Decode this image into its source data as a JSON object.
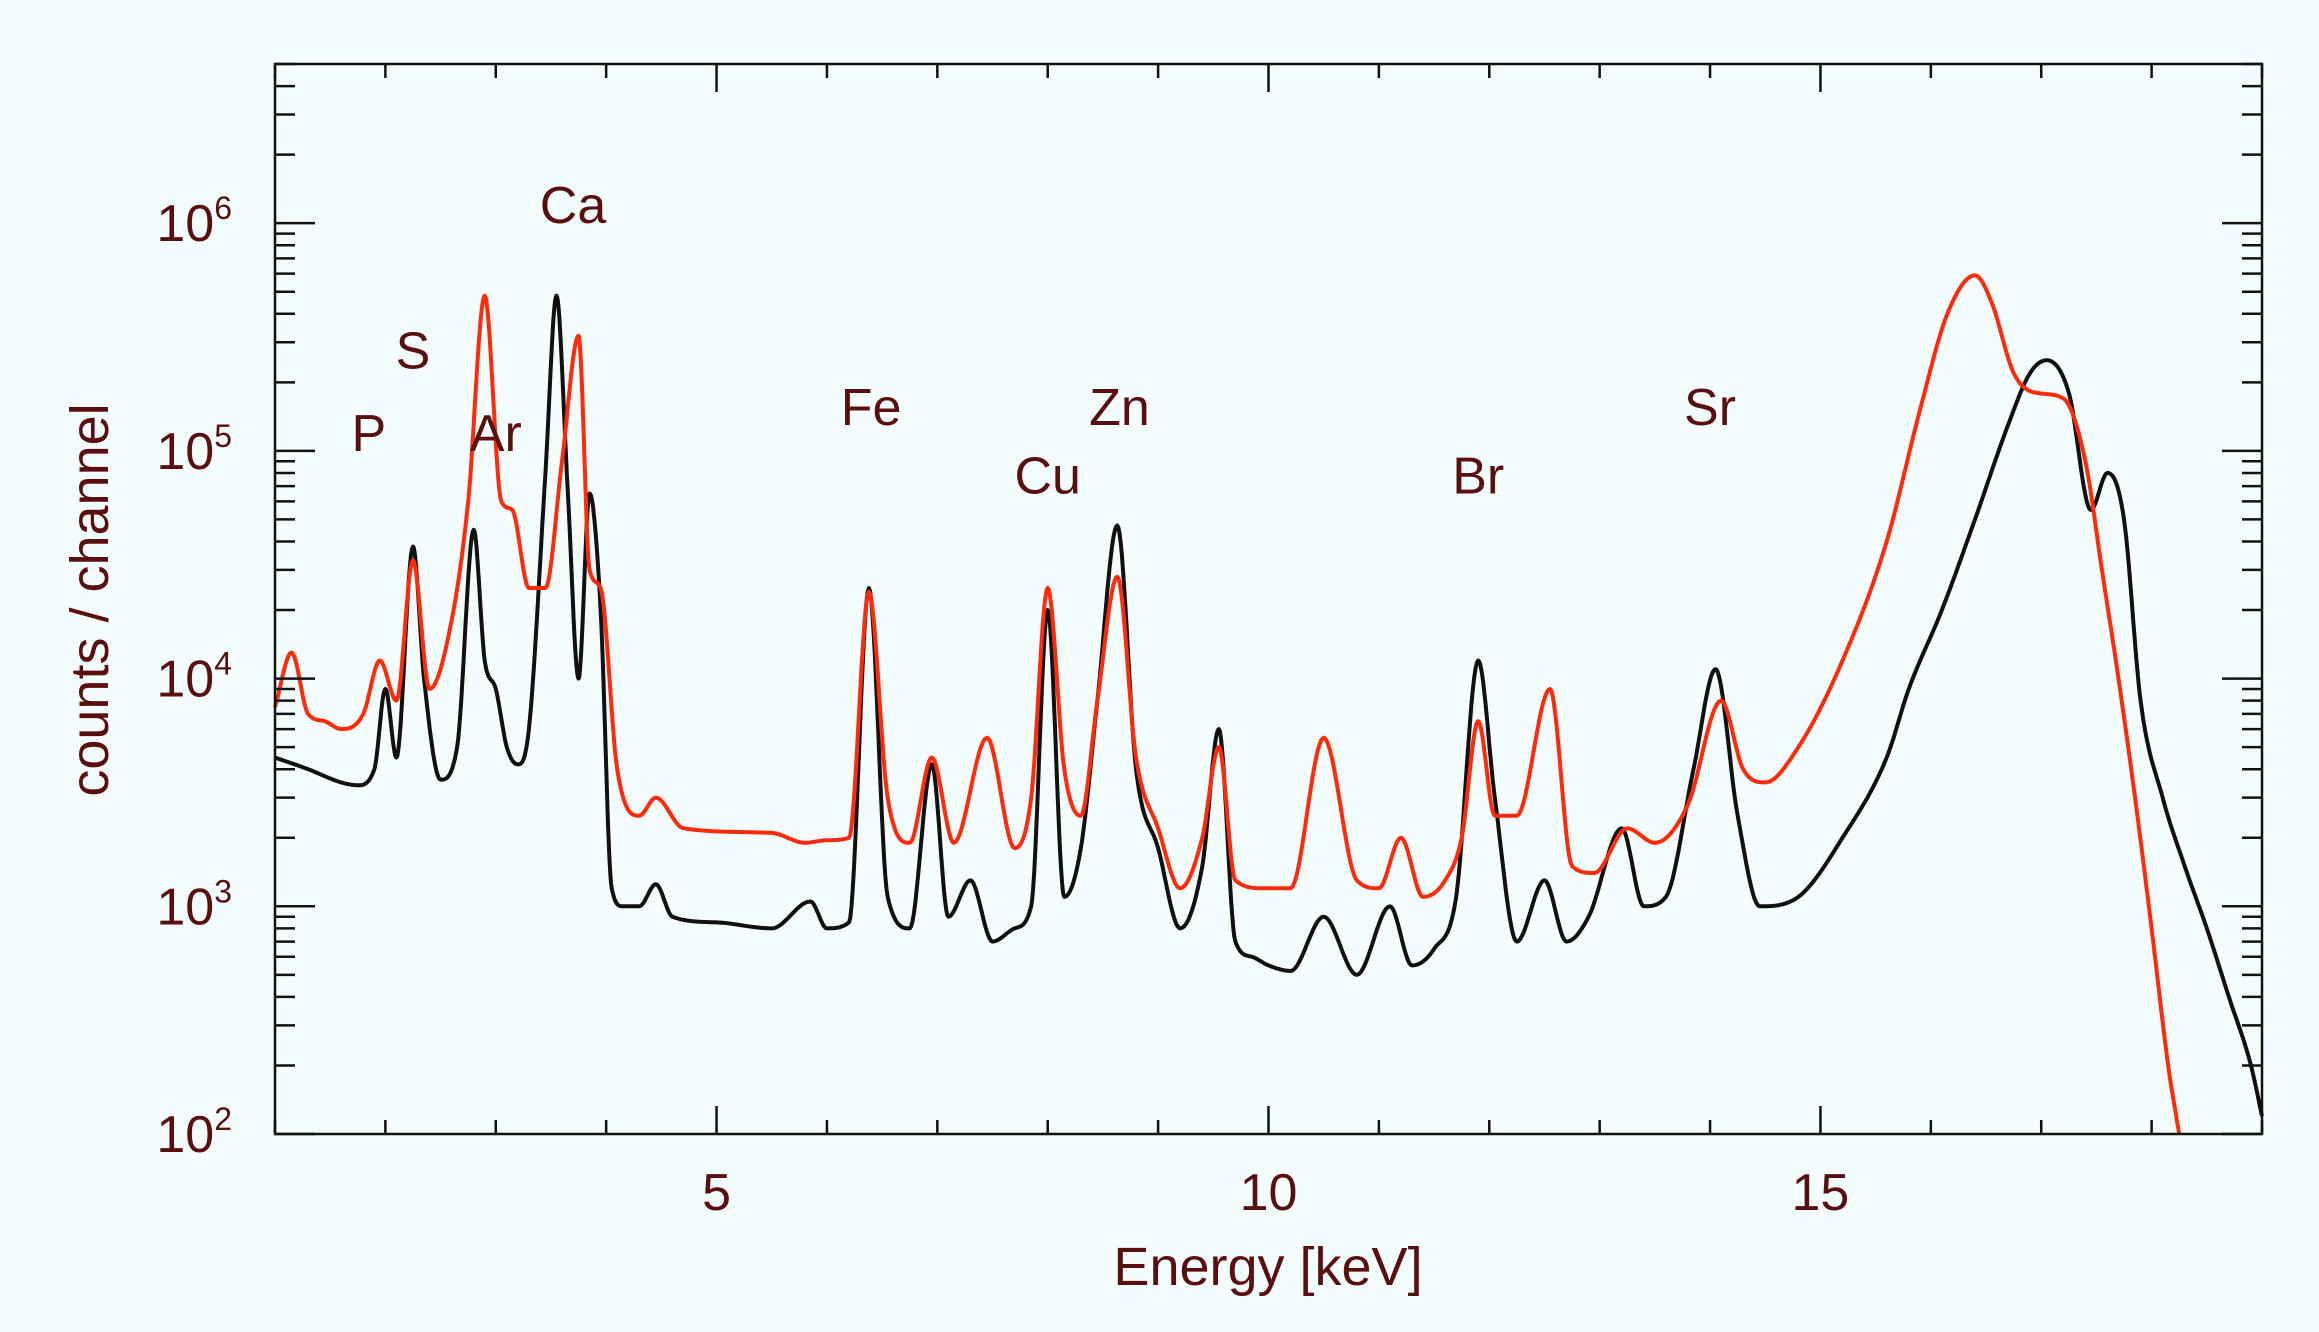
{
  "chart_data": {
    "type": "line",
    "xlabel": "Energy [keV]",
    "ylabel": "counts / channel",
    "xlim": [
      1.0,
      19.0
    ],
    "ylim": [
      100,
      5000000
    ],
    "yscale": "log",
    "grid": false,
    "x_ticks": [
      5,
      10,
      15
    ],
    "y_ticks": [
      {
        "base": "10",
        "exp": "2",
        "value": 100
      },
      {
        "base": "10",
        "exp": "3",
        "value": 1000
      },
      {
        "base": "10",
        "exp": "4",
        "value": 10000
      },
      {
        "base": "10",
        "exp": "5",
        "value": 100000
      },
      {
        "base": "10",
        "exp": "6",
        "value": 1000000
      }
    ],
    "annotations": [
      {
        "text": "P",
        "x": 1.85,
        "y": 100000
      },
      {
        "text": "S",
        "x": 2.25,
        "y": 230000
      },
      {
        "text": "Ar",
        "x": 3.0,
        "y": 100000
      },
      {
        "text": "Ca",
        "x": 3.7,
        "y": 1000000
      },
      {
        "text": "Fe",
        "x": 6.4,
        "y": 130000
      },
      {
        "text": "Cu",
        "x": 8.0,
        "y": 65000
      },
      {
        "text": "Zn",
        "x": 8.65,
        "y": 130000
      },
      {
        "text": "Br",
        "x": 11.9,
        "y": 65000
      },
      {
        "text": "Sr",
        "x": 14.0,
        "y": 130000
      }
    ],
    "series": [
      {
        "color": "#111111",
        "x": [
          1.0,
          1.3,
          1.6,
          1.75,
          1.9,
          2.0,
          2.1,
          2.25,
          2.35,
          2.5,
          2.65,
          2.8,
          2.9,
          3.0,
          3.1,
          3.2,
          3.3,
          3.45,
          3.55,
          3.65,
          3.75,
          3.85,
          3.95,
          4.05,
          4.15,
          4.3,
          4.45,
          4.6,
          5.0,
          5.5,
          5.85,
          6.0,
          6.2,
          6.38,
          6.55,
          6.75,
          6.95,
          7.1,
          7.3,
          7.5,
          7.7,
          7.85,
          8.0,
          8.15,
          8.3,
          8.45,
          8.63,
          8.8,
          9.0,
          9.2,
          9.4,
          9.55,
          9.7,
          9.85,
          10.0,
          10.2,
          10.5,
          10.8,
          11.1,
          11.3,
          11.5,
          11.7,
          11.9,
          12.05,
          12.25,
          12.5,
          12.7,
          12.9,
          13.2,
          13.4,
          13.6,
          13.85,
          14.05,
          14.25,
          14.45,
          14.8,
          15.2,
          15.6,
          15.8,
          16.1,
          16.4,
          16.7,
          16.9,
          17.05,
          17.25,
          17.45,
          17.6,
          17.75,
          17.9,
          18.1,
          18.3,
          18.5,
          18.7,
          18.9,
          19.0
        ],
        "y": [
          4500,
          4000,
          3500,
          3400,
          4000,
          9000,
          4500,
          38000,
          10000,
          3600,
          5000,
          45000,
          12000,
          9000,
          5000,
          4200,
          6000,
          80000,
          480000,
          70000,
          10000,
          65000,
          20000,
          1200,
          1000,
          1000,
          1250,
          900,
          850,
          800,
          1050,
          800,
          850,
          25000,
          1100,
          800,
          4200,
          900,
          1300,
          700,
          800,
          1000,
          20000,
          1100,
          1800,
          8000,
          47000,
          4000,
          1800,
          800,
          1500,
          6000,
          700,
          600,
          550,
          520,
          900,
          500,
          1000,
          550,
          650,
          1100,
          12000,
          3000,
          700,
          1300,
          700,
          900,
          2200,
          1000,
          1100,
          4000,
          11000,
          2500,
          1000,
          1100,
          2000,
          4500,
          9000,
          20000,
          50000,
          130000,
          220000,
          250000,
          180000,
          55000,
          80000,
          50000,
          8000,
          3000,
          1500,
          800,
          400,
          200,
          120
        ]
      },
      {
        "color": "#ff2a0a",
        "x": [
          1.0,
          1.15,
          1.3,
          1.45,
          1.6,
          1.8,
          1.95,
          2.1,
          2.25,
          2.4,
          2.6,
          2.75,
          2.9,
          3.05,
          3.15,
          3.3,
          3.45,
          3.6,
          3.75,
          3.85,
          3.95,
          4.1,
          4.3,
          4.45,
          4.7,
          5.5,
          5.8,
          6.0,
          6.2,
          6.38,
          6.55,
          6.75,
          6.95,
          7.15,
          7.45,
          7.7,
          7.85,
          8.0,
          8.15,
          8.3,
          8.45,
          8.63,
          8.8,
          9.0,
          9.2,
          9.4,
          9.55,
          9.7,
          9.95,
          10.2,
          10.5,
          10.8,
          11.0,
          11.2,
          11.4,
          11.6,
          11.75,
          11.9,
          12.05,
          12.25,
          12.55,
          12.75,
          12.95,
          13.25,
          13.5,
          13.8,
          14.1,
          14.3,
          14.5,
          14.8,
          15.2,
          15.6,
          15.9,
          16.15,
          16.4,
          16.55,
          16.75,
          16.95,
          17.2,
          17.4,
          17.55,
          17.7,
          17.85,
          18.0,
          18.15,
          18.25
        ],
        "y": [
          7500,
          13000,
          7000,
          6500,
          6000,
          7000,
          12000,
          8000,
          33000,
          9000,
          18000,
          60000,
          480000,
          60000,
          55000,
          25000,
          25000,
          90000,
          320000,
          30000,
          25000,
          4000,
          2500,
          3000,
          2200,
          2100,
          1900,
          1950,
          2000,
          24000,
          3000,
          1900,
          4500,
          1900,
          5500,
          1800,
          3000,
          25000,
          4000,
          2500,
          8000,
          28000,
          4500,
          2200,
          1200,
          2000,
          5000,
          1300,
          1200,
          1200,
          5500,
          1300,
          1200,
          2000,
          1100,
          1300,
          2000,
          6500,
          2500,
          2500,
          9000,
          1500,
          1400,
          2200,
          1900,
          2800,
          8000,
          4000,
          3500,
          5000,
          12000,
          40000,
          150000,
          400000,
          590000,
          450000,
          220000,
          180000,
          170000,
          90000,
          30000,
          10000,
          3000,
          800,
          200,
          100
        ]
      }
    ]
  }
}
